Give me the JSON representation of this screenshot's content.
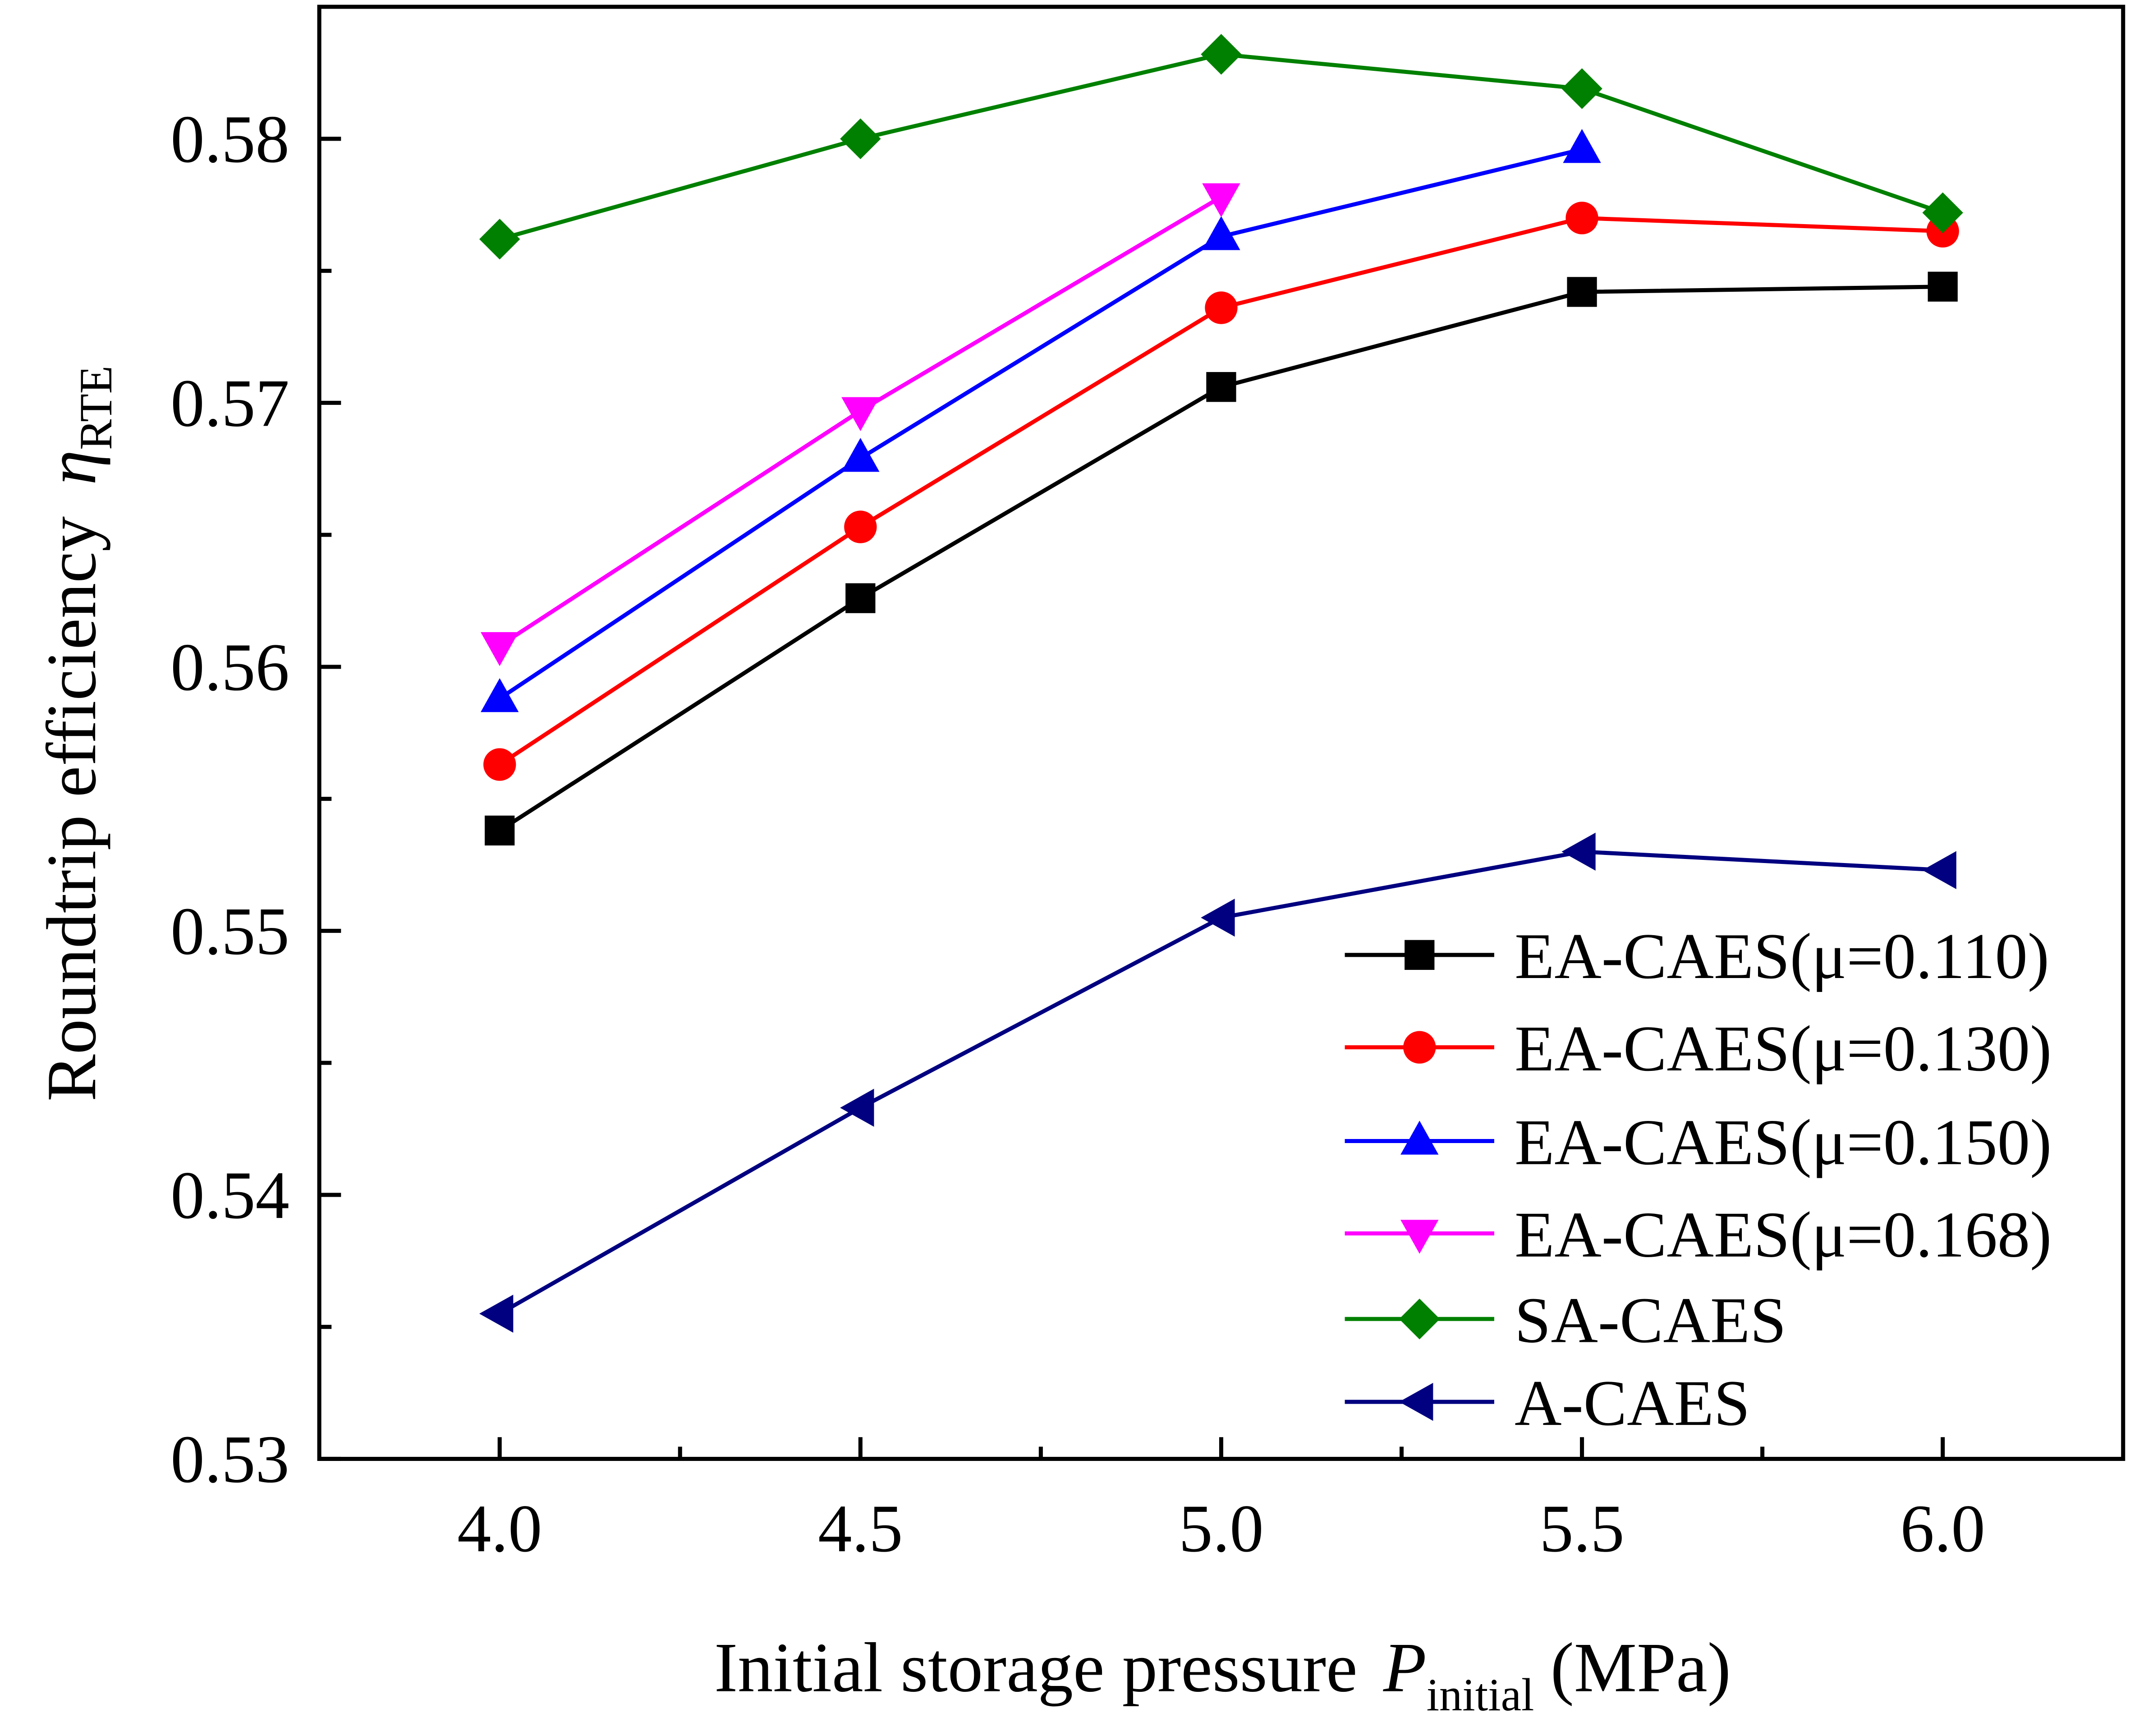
{
  "chart_data": {
    "type": "line",
    "xlabel": "Initial storage pressure",
    "xlabel_symbol": "P",
    "xlabel_subscript": "initial",
    "xlabel_unit": "(MPa)",
    "ylabel": "Roundtrip efficiency",
    "ylabel_symbol": "η",
    "ylabel_subscript": "RTE",
    "xlim": [
      3.75,
      6.25
    ],
    "ylim": [
      0.53,
      0.585
    ],
    "xticks": [
      "4.0",
      "4.5",
      "5.0",
      "5.5",
      "6.0"
    ],
    "yticks": [
      "0.53",
      "0.54",
      "0.55",
      "0.56",
      "0.57",
      "0.58"
    ],
    "grid": false,
    "legend_position": "bottom-right",
    "x": [
      4.0,
      4.5,
      5.0,
      5.5,
      6.0
    ],
    "series": [
      {
        "name": "EA-CAES(μ=0.110)",
        "color": "#000000",
        "marker": "square",
        "values": [
          0.5538,
          0.5626,
          0.5706,
          0.5742,
          0.5744
        ]
      },
      {
        "name": "EA-CAES(μ=0.130)",
        "color": "#ff0000",
        "marker": "circle",
        "values": [
          0.5563,
          0.5653,
          0.5736,
          0.577,
          0.5765
        ]
      },
      {
        "name": "EA-CAES(μ=0.150)",
        "color": "#0000ff",
        "marker": "triangle-up",
        "values": [
          0.5588,
          0.5679,
          0.5763,
          0.5796,
          null
        ]
      },
      {
        "name": "EA-CAES(μ=0.168)",
        "color": "#ff00ff",
        "marker": "triangle-down",
        "values": [
          0.5608,
          0.5697,
          0.5778,
          null,
          null
        ]
      },
      {
        "name": "SA-CAES",
        "color": "#008000",
        "marker": "diamond",
        "values": [
          0.5762,
          0.58,
          0.5832,
          0.5819,
          0.5772
        ]
      },
      {
        "name": "A-CAES",
        "color": "#000080",
        "marker": "triangle-left",
        "values": [
          0.5355,
          0.5433,
          0.5505,
          0.553,
          0.5523
        ]
      }
    ]
  }
}
